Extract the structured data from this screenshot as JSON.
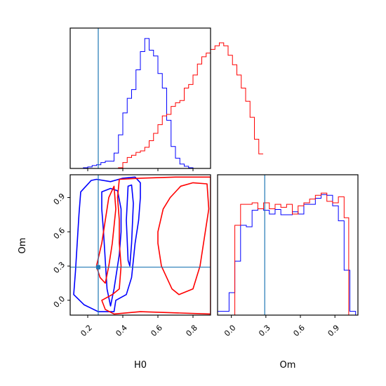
{
  "chart_data": {
    "type": "corner",
    "parameters": [
      "H0",
      "Om"
    ],
    "truth": {
      "H0": 0.26,
      "Om": 0.29
    },
    "colors": {
      "red": "#ff0000",
      "blue": "#0000ff",
      "truth": "#1f77b4"
    },
    "hist_H0": {
      "type": "bar",
      "x_range": [
        0.1,
        0.9
      ],
      "bin_width": 0.025,
      "series": [
        {
          "color": "#0000ff",
          "values": [
            0,
            0,
            0,
            1,
            2,
            4,
            5,
            8,
            10,
            10,
            21,
            46,
            76,
            96,
            108,
            135,
            160,
            178,
            162,
            154,
            130,
            110,
            66,
            30,
            14,
            6,
            3,
            1,
            0,
            0,
            0,
            0
          ]
        },
        {
          "color": "#ff0000",
          "values": [
            0,
            0,
            0,
            0,
            0,
            0,
            0,
            0,
            0,
            0,
            0,
            1,
            8,
            15,
            18,
            22,
            24,
            29,
            38,
            48,
            60,
            72,
            74,
            85,
            90,
            93,
            110,
            115,
            128,
            143,
            153,
            158,
            163,
            168,
            172,
            168,
            155,
            142,
            128,
            110,
            92,
            70,
            40,
            20
          ]
        }
      ]
    },
    "hist_Om": {
      "type": "bar",
      "x_range": [
        -0.12,
        1.1
      ],
      "series": [
        {
          "color": "#0000ff",
          "x": [
            -0.12,
            -0.07,
            -0.02,
            0.03,
            0.08,
            0.13,
            0.18,
            0.23,
            0.28,
            0.33,
            0.38,
            0.43,
            0.48,
            0.53,
            0.58,
            0.63,
            0.68,
            0.73,
            0.78,
            0.83,
            0.88,
            0.93,
            0.98,
            1.03,
            1.08
          ],
          "values": [
            5,
            5,
            30,
            72,
            120,
            118,
            140,
            142,
            140,
            135,
            141,
            134,
            134,
            138,
            135,
            148,
            148,
            156,
            161,
            160,
            146,
            126,
            60,
            5,
            0
          ]
        },
        {
          "color": "#ff0000",
          "x": [
            -0.02,
            0.03,
            0.08,
            0.13,
            0.18,
            0.23,
            0.28,
            0.33,
            0.38,
            0.43,
            0.48,
            0.53,
            0.58,
            0.63,
            0.68,
            0.73,
            0.78,
            0.83,
            0.88,
            0.93,
            0.98,
            1.02
          ],
          "values": [
            0,
            120,
            148,
            148,
            150,
            142,
            150,
            142,
            148,
            144,
            148,
            135,
            146,
            150,
            155,
            160,
            163,
            152,
            150,
            158,
            130,
            0
          ]
        }
      ]
    },
    "contours": {
      "xlim": [
        0.1,
        0.9
      ],
      "ylim": [
        -0.13,
        1.1
      ],
      "series": [
        {
          "color": "#0000ff",
          "levels": [
            [
              [
                0.22,
                1.05
              ],
              [
                0.25,
                1.06
              ],
              [
                0.33,
                1.04
              ],
              [
                0.4,
                1.07
              ],
              [
                0.47,
                1.08
              ],
              [
                0.5,
                1.03
              ],
              [
                0.5,
                0.9
              ],
              [
                0.49,
                0.7
              ],
              [
                0.47,
                0.5
              ],
              [
                0.46,
                0.35
              ],
              [
                0.45,
                0.2
              ],
              [
                0.42,
                0.05
              ],
              [
                0.36,
                0.0
              ],
              [
                0.35,
                -0.1
              ],
              [
                0.26,
                -0.1
              ],
              [
                0.18,
                -0.04
              ],
              [
                0.12,
                0.05
              ],
              [
                0.13,
                0.25
              ],
              [
                0.14,
                0.5
              ],
              [
                0.15,
                0.75
              ],
              [
                0.16,
                0.95
              ],
              [
                0.22,
                1.05
              ]
            ],
            [
              [
                0.28,
                0.95
              ],
              [
                0.33,
                0.98
              ],
              [
                0.37,
                0.96
              ],
              [
                0.39,
                0.8
              ],
              [
                0.39,
                0.6
              ],
              [
                0.38,
                0.4
              ],
              [
                0.35,
                0.1
              ],
              [
                0.33,
                -0.05
              ],
              [
                0.31,
                0.1
              ],
              [
                0.3,
                0.35
              ],
              [
                0.29,
                0.6
              ],
              [
                0.28,
                0.8
              ],
              [
                0.28,
                0.95
              ]
            ],
            [
              [
                0.43,
                1.0
              ],
              [
                0.45,
                1.01
              ],
              [
                0.46,
                0.85
              ],
              [
                0.45,
                0.5
              ],
              [
                0.44,
                0.3
              ],
              [
                0.43,
                0.35
              ],
              [
                0.42,
                0.7
              ],
              [
                0.43,
                1.0
              ]
            ]
          ]
        },
        {
          "color": "#ff0000",
          "levels": [
            [
              [
                0.38,
                1.06
              ],
              [
                0.5,
                1.07
              ],
              [
                0.7,
                1.08
              ],
              [
                0.9,
                1.08
              ],
              [
                0.9,
                -0.12
              ],
              [
                0.5,
                -0.1
              ],
              [
                0.35,
                -0.12
              ],
              [
                0.3,
                -0.08
              ],
              [
                0.28,
                0.0
              ],
              [
                0.34,
                0.05
              ],
              [
                0.38,
                0.1
              ],
              [
                0.39,
                0.3
              ],
              [
                0.38,
                0.5
              ],
              [
                0.38,
                0.7
              ],
              [
                0.37,
                0.9
              ],
              [
                0.38,
                1.06
              ]
            ],
            [
              [
                0.6,
                0.6
              ],
              [
                0.63,
                0.8
              ],
              [
                0.67,
                0.9
              ],
              [
                0.73,
                1.0
              ],
              [
                0.8,
                1.03
              ],
              [
                0.88,
                1.02
              ],
              [
                0.89,
                0.8
              ],
              [
                0.87,
                0.6
              ],
              [
                0.84,
                0.3
              ],
              [
                0.8,
                0.1
              ],
              [
                0.72,
                0.05
              ],
              [
                0.68,
                0.1
              ],
              [
                0.62,
                0.3
              ],
              [
                0.6,
                0.5
              ],
              [
                0.6,
                0.6
              ]
            ],
            [
              [
                0.25,
                0.3
              ],
              [
                0.28,
                0.5
              ],
              [
                0.3,
                0.7
              ],
              [
                0.32,
                0.9
              ],
              [
                0.35,
                1.0
              ],
              [
                0.36,
                0.8
              ],
              [
                0.34,
                0.5
              ],
              [
                0.32,
                0.3
              ],
              [
                0.3,
                0.15
              ],
              [
                0.27,
                0.2
              ],
              [
                0.25,
                0.3
              ]
            ]
          ]
        }
      ]
    },
    "axis_labels": {
      "x1": "H0",
      "x2": "Om",
      "y_left": "Om"
    },
    "ticks": {
      "H0": [
        {
          "v": 0.2,
          "t": "0.2"
        },
        {
          "v": 0.4,
          "t": "0.4"
        },
        {
          "v": 0.6,
          "t": "0.6"
        },
        {
          "v": 0.8,
          "t": "0.8"
        }
      ],
      "Om_x": [
        {
          "v": 0.0,
          "t": "0.0"
        },
        {
          "v": 0.3,
          "t": "0.3"
        },
        {
          "v": 0.6,
          "t": "0.6"
        },
        {
          "v": 0.9,
          "t": "0.9"
        }
      ],
      "Om_y": [
        {
          "v": 0.0,
          "t": "0.0"
        },
        {
          "v": 0.3,
          "t": "0.3"
        },
        {
          "v": 0.6,
          "t": "0.6"
        },
        {
          "v": 0.9,
          "t": "0.9"
        }
      ]
    }
  }
}
